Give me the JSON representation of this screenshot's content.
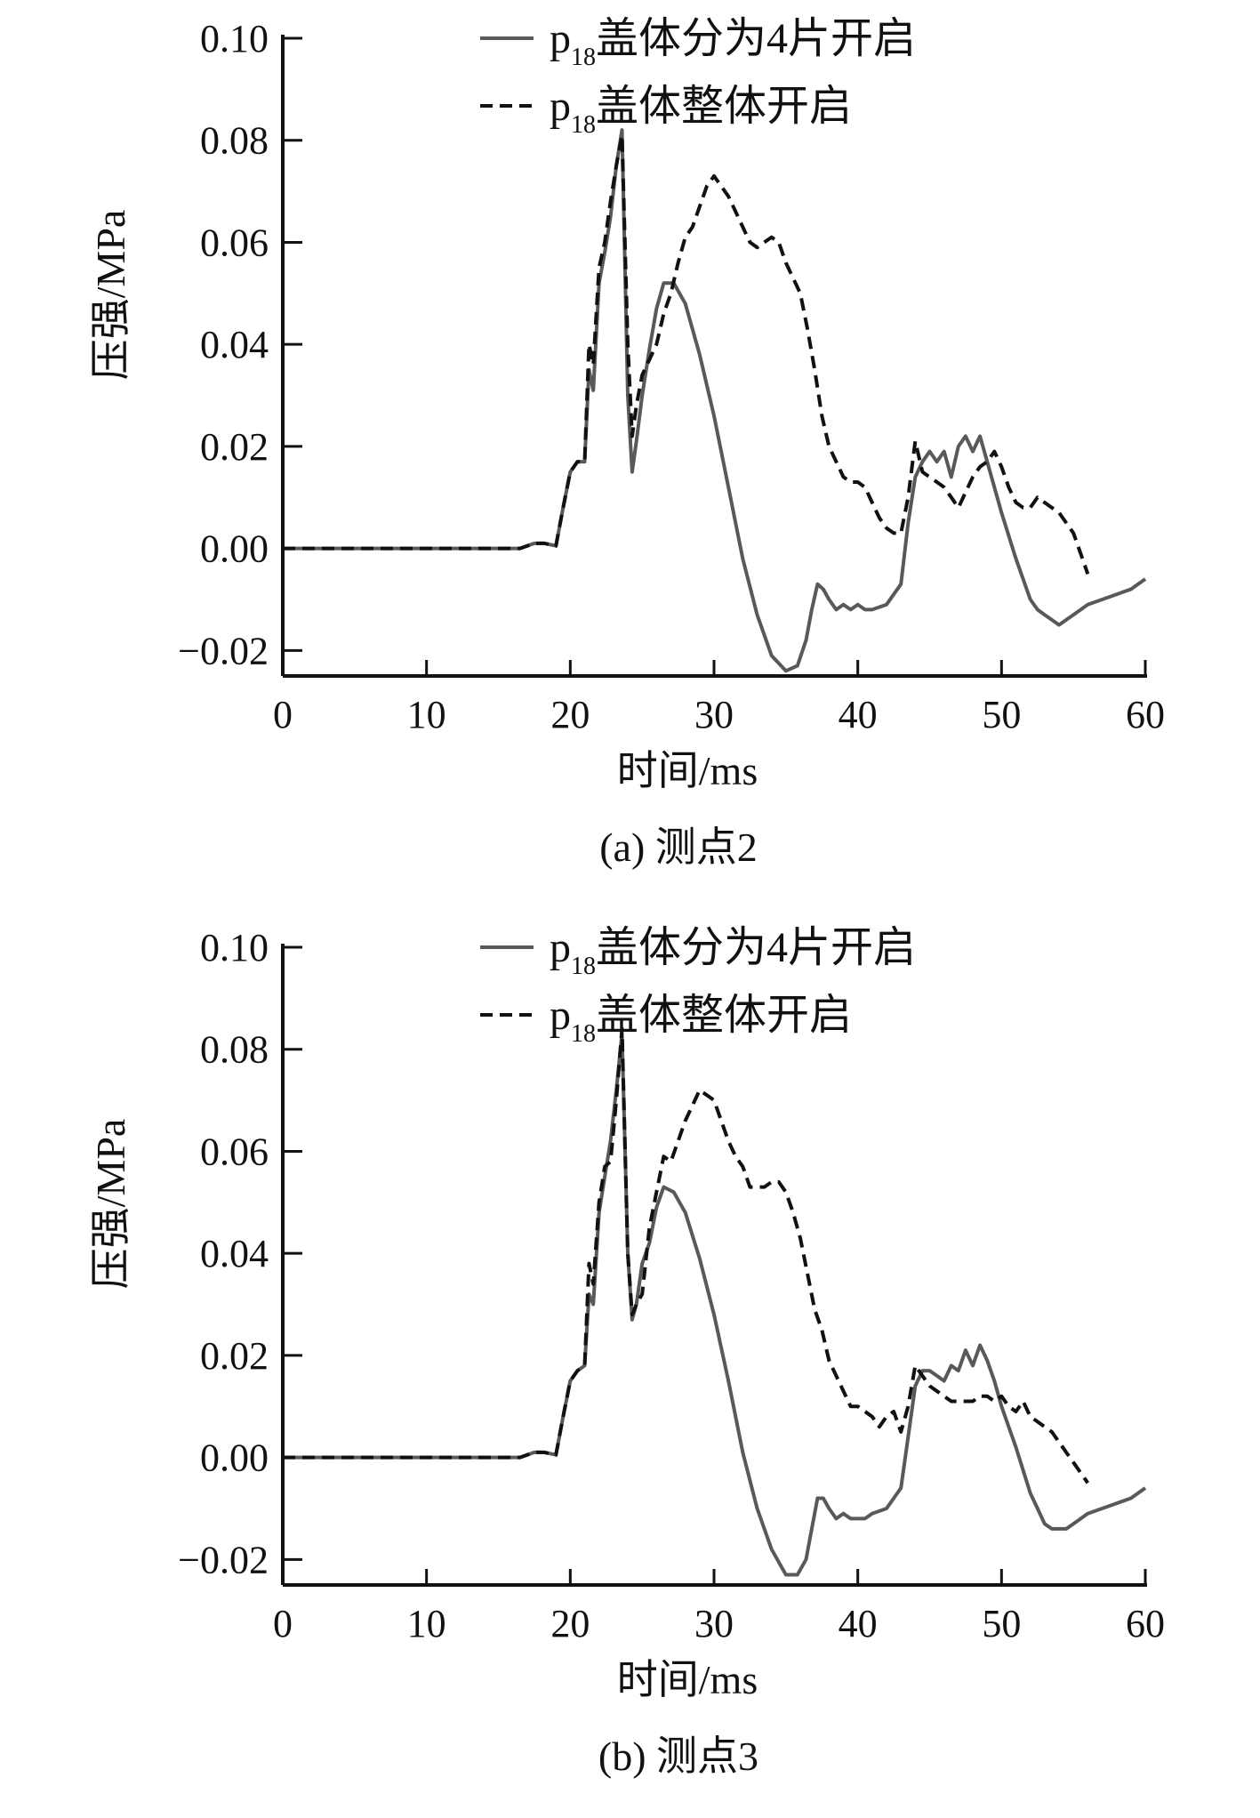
{
  "chart_data": [
    {
      "type": "line",
      "caption": "(a) 测点2",
      "xlabel": "时间/ms",
      "ylabel": "压强/MPa",
      "xlim": [
        0,
        60
      ],
      "ylim": [
        -0.025,
        0.1
      ],
      "xticks": [
        "0",
        "10",
        "20",
        "30",
        "40",
        "50",
        "60"
      ],
      "yticks": [
        "−0.02",
        "0.00",
        "0.02",
        "0.04",
        "0.06",
        "0.08",
        "0.10"
      ],
      "legend_position": "top-right",
      "series": [
        {
          "name": "p18盖体分为4片开启",
          "name_main": "p",
          "name_sub": "18",
          "name_rest": "盖体分为4片开启",
          "style": "solid",
          "color": "#595959",
          "x": [
            0,
            16.5,
            17.5,
            18.2,
            19,
            19.5,
            20,
            20.5,
            21,
            21.3,
            21.6,
            22,
            22.4,
            22.8,
            23.2,
            23.6,
            24,
            24.3,
            24.6,
            25,
            25.5,
            26,
            26.5,
            27.2,
            28,
            29,
            30,
            31,
            32,
            33,
            34,
            35,
            35.8,
            36.4,
            36.8,
            37.2,
            37.6,
            38,
            38.5,
            39,
            39.5,
            40,
            40.5,
            41,
            42,
            42.5,
            43,
            43.5,
            44,
            44.5,
            45,
            45.5,
            46,
            46.5,
            47,
            47.5,
            48,
            48.5,
            49,
            49.5,
            50,
            51,
            52,
            52.5,
            53,
            53.5,
            54,
            54.5,
            55,
            56,
            57,
            58,
            59,
            60
          ],
          "y": [
            0,
            0,
            0.001,
            0.001,
            0.0005,
            0.008,
            0.015,
            0.017,
            0.017,
            0.035,
            0.031,
            0.052,
            0.058,
            0.065,
            0.075,
            0.082,
            0.03,
            0.015,
            0.021,
            0.03,
            0.039,
            0.047,
            0.052,
            0.052,
            0.048,
            0.038,
            0.026,
            0.012,
            -0.002,
            -0.013,
            -0.021,
            -0.024,
            -0.023,
            -0.018,
            -0.012,
            -0.007,
            -0.008,
            -0.01,
            -0.012,
            -0.011,
            -0.012,
            -0.011,
            -0.012,
            -0.012,
            -0.011,
            -0.009,
            -0.007,
            0.005,
            0.014,
            0.017,
            0.019,
            0.017,
            0.019,
            0.014,
            0.02,
            0.022,
            0.019,
            0.022,
            0.017,
            0.012,
            0.007,
            -0.002,
            -0.01,
            -0.012,
            -0.013,
            -0.014,
            -0.015,
            -0.014,
            -0.013,
            -0.011,
            -0.01,
            -0.009,
            -0.008,
            -0.006
          ]
        },
        {
          "name": "p18盖体整体开启",
          "name_main": "p",
          "name_sub": "18",
          "name_rest": "盖体整体开启",
          "style": "dashed",
          "color": "#111111",
          "x": [
            0,
            16.5,
            17.5,
            18.2,
            19,
            19.5,
            20,
            20.5,
            21,
            21.3,
            21.6,
            22,
            22.4,
            22.8,
            23.2,
            23.6,
            24,
            24.3,
            24.6,
            25,
            25.5,
            26,
            26.5,
            27,
            27.5,
            28,
            28.5,
            29,
            29.5,
            30,
            30.5,
            31,
            31.5,
            32,
            32.5,
            33,
            33.5,
            34,
            34.5,
            35,
            35.5,
            36,
            36.5,
            37,
            37.5,
            38,
            38.5,
            39,
            39.5,
            40,
            40.5,
            41,
            41.5,
            42,
            42.5,
            43,
            43.5,
            44,
            44.5,
            45,
            45.5,
            46,
            46.5,
            47,
            47.5,
            48,
            48.5,
            49,
            49.5,
            50,
            50.5,
            51,
            51.5,
            52,
            52.5,
            53,
            53.5,
            54,
            54.5,
            55,
            55.5,
            56
          ],
          "y": [
            0,
            0,
            0.001,
            0.001,
            0.0005,
            0.008,
            0.015,
            0.017,
            0.017,
            0.04,
            0.036,
            0.055,
            0.06,
            0.068,
            0.075,
            0.081,
            0.04,
            0.022,
            0.028,
            0.034,
            0.037,
            0.04,
            0.046,
            0.05,
            0.056,
            0.061,
            0.063,
            0.067,
            0.071,
            0.073,
            0.071,
            0.069,
            0.066,
            0.063,
            0.06,
            0.059,
            0.06,
            0.061,
            0.06,
            0.056,
            0.053,
            0.05,
            0.043,
            0.035,
            0.026,
            0.02,
            0.017,
            0.014,
            0.013,
            0.013,
            0.012,
            0.009,
            0.006,
            0.004,
            0.003,
            0.003,
            0.01,
            0.021,
            0.015,
            0.014,
            0.013,
            0.012,
            0.01,
            0.008,
            0.011,
            0.014,
            0.016,
            0.017,
            0.019,
            0.016,
            0.012,
            0.009,
            0.008,
            0.008,
            0.01,
            0.009,
            0.008,
            0.007,
            0.005,
            0.003,
            -0.001,
            -0.005
          ]
        }
      ]
    },
    {
      "type": "line",
      "caption": "(b) 测点3",
      "xlabel": "时间/ms",
      "ylabel": "压强/MPa",
      "xlim": [
        0,
        60
      ],
      "ylim": [
        -0.025,
        0.1
      ],
      "xticks": [
        "0",
        "10",
        "20",
        "30",
        "40",
        "50",
        "60"
      ],
      "yticks": [
        "−0.02",
        "0.00",
        "0.02",
        "0.04",
        "0.06",
        "0.08",
        "0.10"
      ],
      "legend_position": "top-right",
      "series": [
        {
          "name": "p18盖体分为4片开启",
          "name_main": "p",
          "name_sub": "18",
          "name_rest": "盖体分为4片开启",
          "style": "solid",
          "color": "#595959",
          "x": [
            0,
            16.5,
            17.5,
            18.2,
            19,
            19.5,
            20,
            20.5,
            21,
            21.3,
            21.6,
            22,
            22.4,
            22.8,
            23.2,
            23.6,
            24,
            24.3,
            24.6,
            25,
            25.5,
            26,
            26.5,
            27.2,
            28,
            29,
            30,
            31,
            32,
            33,
            34,
            35,
            35.8,
            36.4,
            36.8,
            37.2,
            37.6,
            38,
            38.5,
            39,
            39.5,
            40,
            40.5,
            41,
            42,
            42.5,
            43,
            43.5,
            44,
            44.5,
            45,
            45.5,
            46,
            46.5,
            47,
            47.5,
            48,
            48.5,
            49,
            49.5,
            50,
            51,
            52,
            52.5,
            53,
            53.5,
            54,
            54.5,
            55,
            56,
            57,
            58,
            59,
            60
          ],
          "y": [
            0,
            0,
            0.001,
            0.001,
            0.0005,
            0.008,
            0.015,
            0.017,
            0.018,
            0.032,
            0.03,
            0.048,
            0.055,
            0.062,
            0.072,
            0.083,
            0.04,
            0.027,
            0.03,
            0.038,
            0.042,
            0.049,
            0.053,
            0.052,
            0.048,
            0.039,
            0.028,
            0.015,
            0.001,
            -0.01,
            -0.018,
            -0.023,
            -0.023,
            -0.02,
            -0.014,
            -0.008,
            -0.008,
            -0.01,
            -0.012,
            -0.011,
            -0.012,
            -0.012,
            -0.012,
            -0.011,
            -0.01,
            -0.008,
            -0.006,
            0.004,
            0.014,
            0.017,
            0.017,
            0.016,
            0.015,
            0.018,
            0.017,
            0.021,
            0.018,
            0.022,
            0.019,
            0.015,
            0.01,
            0.002,
            -0.007,
            -0.01,
            -0.013,
            -0.014,
            -0.014,
            -0.014,
            -0.013,
            -0.011,
            -0.01,
            -0.009,
            -0.008,
            -0.006
          ]
        },
        {
          "name": "p18盖体整体开启",
          "name_main": "p",
          "name_sub": "18",
          "name_rest": "盖体整体开启",
          "style": "dashed",
          "color": "#111111",
          "x": [
            0,
            16.5,
            17.5,
            18.2,
            19,
            19.5,
            20,
            20.5,
            21,
            21.3,
            21.6,
            22,
            22.4,
            22.8,
            23.2,
            23.6,
            24,
            24.3,
            24.6,
            25,
            25.5,
            26,
            26.5,
            27,
            27.5,
            28,
            28.5,
            29,
            29.5,
            30,
            30.5,
            31,
            31.5,
            32,
            32.5,
            33,
            33.5,
            34,
            34.5,
            35,
            35.5,
            36,
            36.5,
            37,
            37.5,
            38,
            38.5,
            39,
            39.5,
            40,
            40.5,
            41,
            41.5,
            42,
            42.5,
            43,
            43.5,
            44,
            44.5,
            45,
            45.5,
            46,
            46.5,
            47,
            47.5,
            48,
            48.5,
            49,
            49.5,
            50,
            50.5,
            51,
            51.5,
            52,
            52.5,
            53,
            53.5,
            54,
            54.5,
            55,
            55.5,
            56
          ],
          "y": [
            0,
            0,
            0.001,
            0.001,
            0.0005,
            0.008,
            0.015,
            0.017,
            0.018,
            0.038,
            0.034,
            0.05,
            0.057,
            0.058,
            0.07,
            0.084,
            0.04,
            0.028,
            0.03,
            0.032,
            0.045,
            0.052,
            0.059,
            0.058,
            0.062,
            0.066,
            0.069,
            0.072,
            0.071,
            0.07,
            0.066,
            0.062,
            0.059,
            0.057,
            0.053,
            0.053,
            0.053,
            0.054,
            0.054,
            0.052,
            0.048,
            0.043,
            0.036,
            0.029,
            0.025,
            0.019,
            0.016,
            0.013,
            0.01,
            0.01,
            0.009,
            0.008,
            0.006,
            0.008,
            0.009,
            0.005,
            0.01,
            0.018,
            0.016,
            0.014,
            0.013,
            0.012,
            0.011,
            0.011,
            0.011,
            0.011,
            0.012,
            0.012,
            0.011,
            0.012,
            0.01,
            0.009,
            0.011,
            0.008,
            0.007,
            0.006,
            0.005,
            0.003,
            0.001,
            -0.001,
            -0.003,
            -0.005
          ]
        }
      ]
    }
  ]
}
